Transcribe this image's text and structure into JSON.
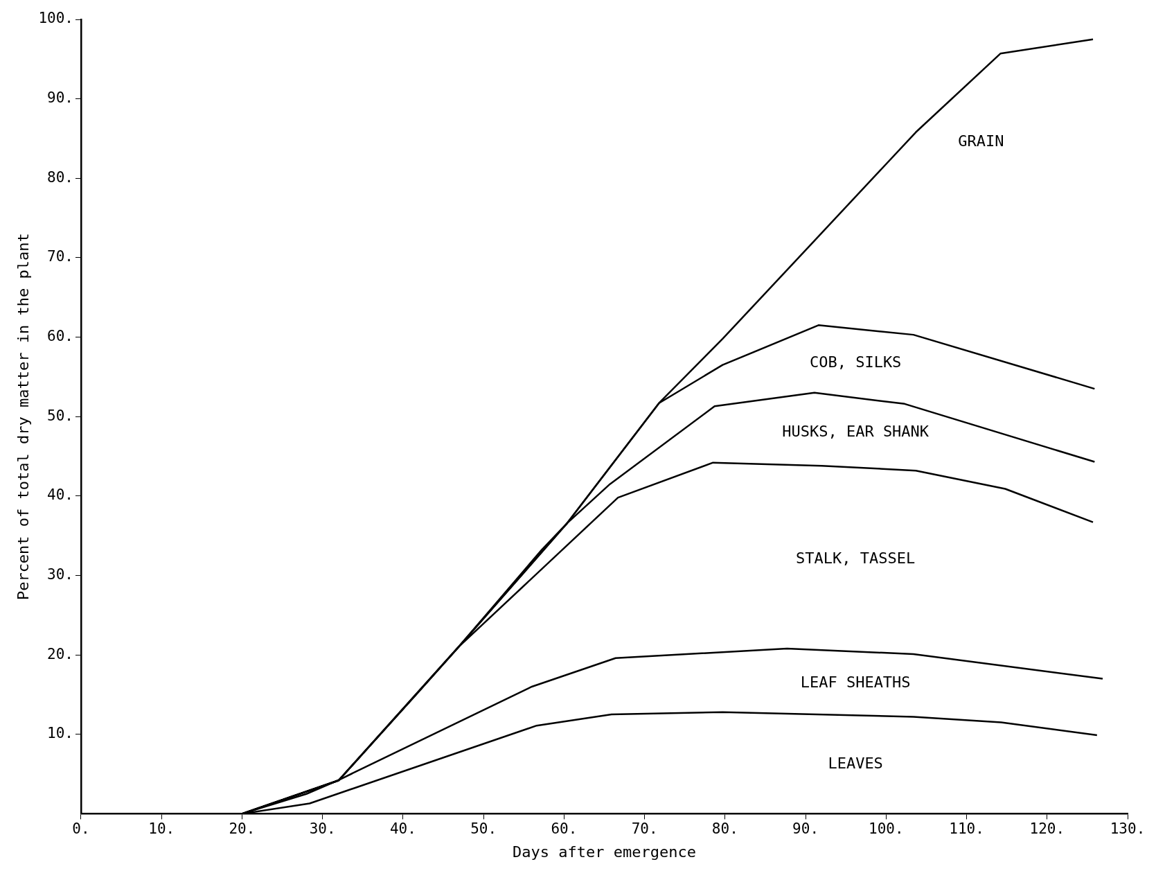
{
  "chart_data": {
    "type": "line",
    "xlabel": "Days after emergence",
    "ylabel": "Percent of total dry matter in the plant",
    "series": [
      {
        "color": "#000000",
        "x": [
          20,
          28.4,
          56.6,
          65.9,
          79.7,
          103.4,
          114.3,
          126.2
        ],
        "values": [
          0,
          1.3,
          11.1,
          12.5,
          12.8,
          12.2,
          11.5,
          9.9
        ]
      },
      {
        "color": "#000000",
        "x": [
          20,
          28,
          31.9,
          56,
          66.4,
          87.7,
          103.4,
          126.9
        ],
        "values": [
          0,
          2.5,
          4.2,
          16,
          19.6,
          20.8,
          20.1,
          17.0
        ]
      },
      {
        "color": "#000000",
        "x": [
          20,
          32,
          46.9,
          66.7,
          78.5,
          92,
          103.7,
          114.8,
          125.7
        ],
        "values": [
          0,
          4.2,
          21.0,
          39.8,
          44.2,
          43.8,
          43.2,
          40.9,
          36.7
        ]
      },
      {
        "color": "#000000",
        "x": [
          20,
          32,
          46.9,
          60.4,
          65.7,
          78.7,
          91.1,
          102.3,
          125.9
        ],
        "values": [
          0,
          4.2,
          21.0,
          36.6,
          41.5,
          51.3,
          53.0,
          51.6,
          44.3
        ]
      },
      {
        "color": "#000000",
        "x": [
          20,
          32,
          46.9,
          60.4,
          71.8,
          79.7,
          91.6,
          103.4,
          125.9
        ],
        "values": [
          0,
          4.2,
          21.0,
          36.6,
          51.7,
          56.5,
          61.5,
          60.3,
          53.5
        ]
      },
      {
        "color": "#000000",
        "x": [
          20,
          32,
          41.9,
          46.9,
          57.2,
          60.4,
          71.8,
          79.7,
          90.6,
          103.7,
          114.2,
          125.7
        ],
        "values": [
          0,
          4.2,
          15.3,
          21.0,
          33.2,
          36.6,
          51.7,
          59.8,
          71.6,
          85.8,
          95.7,
          97.5
        ]
      }
    ],
    "xlim": [
      0,
      130
    ],
    "ylim": [
      0,
      100
    ],
    "xticks": [
      {
        "value": 0,
        "label": "0."
      },
      {
        "value": 10,
        "label": "10."
      },
      {
        "value": 20,
        "label": "20."
      },
      {
        "value": 30,
        "label": "30."
      },
      {
        "value": 40,
        "label": "40."
      },
      {
        "value": 50,
        "label": "50."
      },
      {
        "value": 60,
        "label": "60."
      },
      {
        "value": 70,
        "label": "70."
      },
      {
        "value": 80,
        "label": "80."
      },
      {
        "value": 90,
        "label": "90."
      },
      {
        "value": 100,
        "label": "100."
      },
      {
        "value": 110,
        "label": "110."
      },
      {
        "value": 120,
        "label": "120."
      },
      {
        "value": 130,
        "label": "130."
      }
    ],
    "yticks": [
      {
        "value": 10,
        "label": "10."
      },
      {
        "value": 20,
        "label": "20."
      },
      {
        "value": 30,
        "label": "30."
      },
      {
        "value": 40,
        "label": "40."
      },
      {
        "value": 50,
        "label": "50."
      },
      {
        "value": 60,
        "label": "60."
      },
      {
        "value": 70,
        "label": "70."
      },
      {
        "value": 80,
        "label": "80."
      },
      {
        "value": 90,
        "label": "90."
      },
      {
        "value": 100,
        "label": "100."
      }
    ],
    "annotations": [
      "GRAIN",
      "COB, SILKS",
      "HUSKS, EAR SHANK",
      "STALK, TASSEL",
      "LEAF SHEATHS",
      "LEAVES"
    ],
    "grid": false,
    "legend": false,
    "marker": "none",
    "line_style": "solid"
  }
}
